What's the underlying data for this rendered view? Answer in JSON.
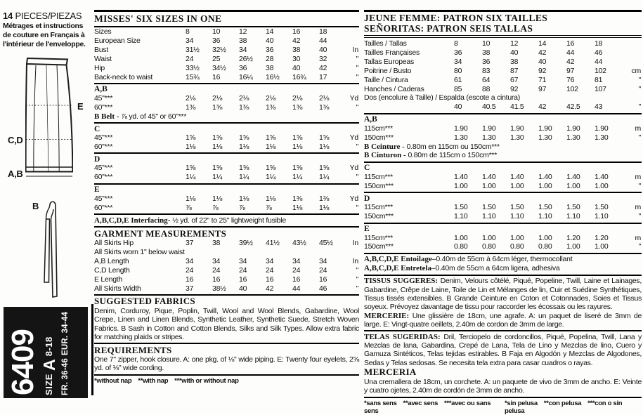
{
  "sidebar": {
    "pieces_num": "14",
    "pieces_label": " PIECES/PIEZAS",
    "french_note": "Métrages et instructions de couture en Français à l'intérieur de l'enveloppe.",
    "skirt_labels": {
      "e": "E",
      "cd": "C,D",
      "ab": "A,B",
      "b": "B"
    },
    "box": {
      "number": "6409",
      "size_word": "SIZE ",
      "size_letter": "A",
      "size_range": " 8-18",
      "fr_range": "FR. 36-46",
      "eur_range": "EUR. 34-44"
    }
  },
  "english": {
    "title": "MISSES' SIX SIZES IN ONE",
    "rows": [
      {
        "t": "row",
        "label": "Sizes",
        "v": [
          "8",
          "10",
          "12",
          "14",
          "16",
          "18"
        ],
        "u": ""
      },
      {
        "t": "row",
        "label": "European Size",
        "v": [
          "34",
          "36",
          "38",
          "40",
          "42",
          "44"
        ],
        "u": ""
      },
      {
        "t": "row",
        "label": "Bust",
        "v": [
          "31½",
          "32½",
          "34",
          "36",
          "38",
          "40"
        ],
        "u": "In"
      },
      {
        "t": "row",
        "label": "Waist",
        "v": [
          "24",
          "25",
          "26½",
          "28",
          "30",
          "32"
        ],
        "u": "\""
      },
      {
        "t": "row",
        "label": "Hip",
        "v": [
          "33½",
          "34½",
          "36",
          "38",
          "40",
          "42"
        ],
        "u": "\""
      },
      {
        "t": "row",
        "label": "Back-neck to waist",
        "v": [
          "15¾",
          "16",
          "16¼",
          "16½",
          "16¾",
          "17"
        ],
        "u": "\""
      },
      {
        "t": "hr"
      },
      {
        "t": "section",
        "label": "A,B"
      },
      {
        "t": "row",
        "label": "45\"***",
        "v": [
          "2⅛",
          "2⅛",
          "2⅛",
          "2⅛",
          "2⅛",
          "2⅛"
        ],
        "u": "Yd"
      },
      {
        "t": "row",
        "label": "60\"***",
        "v": [
          "1⅜",
          "1⅜",
          "1⅜",
          "1⅜",
          "1⅜",
          "1⅜"
        ],
        "u": "\""
      },
      {
        "t": "note",
        "b": "B Belt - ",
        "x": "⅞ yd. of 45\" or 60\"***"
      },
      {
        "t": "hr"
      },
      {
        "t": "section",
        "label": "C"
      },
      {
        "t": "row",
        "label": "45\"***",
        "v": [
          "1⅝",
          "1⅝",
          "1⅝",
          "1⅝",
          "1⅝",
          "1⅝"
        ],
        "u": "Yd"
      },
      {
        "t": "row",
        "label": "60\"***",
        "v": [
          "1⅛",
          "1⅛",
          "1⅛",
          "1⅛",
          "1⅛",
          "1⅛"
        ],
        "u": "\""
      },
      {
        "t": "hr"
      },
      {
        "t": "section",
        "label": "D"
      },
      {
        "t": "row",
        "label": "45\"***",
        "v": [
          "1⅝",
          "1⅝",
          "1⅝",
          "1⅝",
          "1⅝",
          "1⅝"
        ],
        "u": "Yd"
      },
      {
        "t": "row",
        "label": "60\"***",
        "v": [
          "1¼",
          "1¼",
          "1¼",
          "1¼",
          "1¼",
          "1¼"
        ],
        "u": "\""
      },
      {
        "t": "hr"
      },
      {
        "t": "section",
        "label": "E"
      },
      {
        "t": "row",
        "label": "45\"***",
        "v": [
          "1⅛",
          "1⅛",
          "1⅛",
          "1⅛",
          "1⅜",
          "1⅜"
        ],
        "u": "Yd"
      },
      {
        "t": "row",
        "label": "60\"***",
        "v": [
          "⅞",
          "⅞",
          "⅞",
          "⅞",
          "1⅛",
          "1⅛"
        ],
        "u": "\""
      },
      {
        "t": "hr"
      },
      {
        "t": "note",
        "b": "A,B,C,D,E Interfacing- ",
        "x": "½ yd. of 22\" to 25\" lightweight fusible"
      },
      {
        "t": "hr"
      },
      {
        "t": "head",
        "label": "GARMENT MEASUREMENTS"
      },
      {
        "t": "row",
        "label": "All Skirts Hip",
        "v": [
          "37",
          "38",
          "39½",
          "41½",
          "43½",
          "45½"
        ],
        "u": "In"
      },
      {
        "t": "full",
        "x": "All Skirts worn 1\" below waist"
      },
      {
        "t": "row",
        "label": "A,B Length",
        "v": [
          "34",
          "34",
          "34",
          "34",
          "34",
          "34"
        ],
        "u": "In"
      },
      {
        "t": "row",
        "label": "C,D Length",
        "v": [
          "24",
          "24",
          "24",
          "24",
          "24",
          "24"
        ],
        "u": "\""
      },
      {
        "t": "row",
        "label": "E Length",
        "v": [
          "16",
          "16",
          "16",
          "16",
          "16",
          "16"
        ],
        "u": "\""
      },
      {
        "t": "row",
        "label": "All Skirts Width",
        "v": [
          "37",
          "38½",
          "40",
          "42",
          "44",
          "46"
        ],
        "u": "\""
      },
      {
        "t": "hr"
      },
      {
        "t": "head",
        "label": "SUGGESTED FABRICS"
      },
      {
        "t": "para",
        "x": "Denim, Corduroy, Pique, Poplin, Twill, Wool and Wool Blends, Gabardine, Wool Crepe, Linen and Linen Blends, Synthetic Leather, Synthetic Suede, Stretch Woven Fabrics. B Sash in Cotton and Cotton Blends, Silks and Silk Types. Allow extra fabric for matching plaids or stripes."
      },
      {
        "t": "hr"
      },
      {
        "t": "head",
        "label": "REQUIREMENTS"
      },
      {
        "t": "para",
        "x": "One 7\" zipper, hook closure. A: one pkg. of ⅛\" wide piping. E: Twenty four eyelets, 2⅝ yd. of ⅛\" wide cording."
      }
    ],
    "footnotes": [
      "*without nap",
      "**with nap",
      "***with or without nap"
    ]
  },
  "foreign": {
    "title_fr": "JEUNE FEMME: PATRON SIX TAILLES",
    "title_es": "SEÑORITAS: PATRON SEIS TALLAS",
    "rows": [
      {
        "t": "row",
        "label": "Tailles / Tallas",
        "v": [
          "8",
          "10",
          "12",
          "14",
          "16",
          "18"
        ],
        "u": ""
      },
      {
        "t": "row",
        "label": "Tailles Françaises",
        "v": [
          "36",
          "38",
          "40",
          "42",
          "44",
          "46"
        ],
        "u": ""
      },
      {
        "t": "row",
        "label": "Tallas Europeas",
        "v": [
          "34",
          "36",
          "38",
          "40",
          "42",
          "44"
        ],
        "u": ""
      },
      {
        "t": "row",
        "label": "Poitrine / Busto",
        "v": [
          "80",
          "83",
          "87",
          "92",
          "97",
          "102"
        ],
        "u": "cm"
      },
      {
        "t": "row",
        "label": "Taille / Cintura",
        "v": [
          "61",
          "64",
          "67",
          "71",
          "76",
          "81"
        ],
        "u": "\""
      },
      {
        "t": "row",
        "label": "Hanches / Caderas",
        "v": [
          "85",
          "88",
          "92",
          "97",
          "102",
          "107"
        ],
        "u": "\""
      },
      {
        "t": "full",
        "x": "Dos (encolure à Taille) / Espalda (escote a cintura)"
      },
      {
        "t": "row",
        "label": "",
        "v": [
          "40",
          "40.5",
          "41.5",
          "42",
          "42.5",
          "43"
        ],
        "u": "\""
      },
      {
        "t": "hr"
      },
      {
        "t": "section",
        "label": "A,B"
      },
      {
        "t": "row",
        "label": "115cm***",
        "v": [
          "1.90",
          "1.90",
          "1.90",
          "1.90",
          "1.90",
          "1.90"
        ],
        "u": "m"
      },
      {
        "t": "row",
        "label": "150cm***",
        "v": [
          "1.30",
          "1.30",
          "1.30",
          "1.30",
          "1.30",
          "1.30"
        ],
        "u": "\""
      },
      {
        "t": "note",
        "b": "B Ceinture - ",
        "x": "0.80m en 115cm ou 150cm***"
      },
      {
        "t": "note",
        "b": "B Cinturon - ",
        "x": "0.80m de 115cm o 150cm***"
      },
      {
        "t": "hr"
      },
      {
        "t": "section",
        "label": "C"
      },
      {
        "t": "row",
        "label": "115cm***",
        "v": [
          "1.40",
          "1.40",
          "1.40",
          "1.40",
          "1.40",
          "1.40"
        ],
        "u": "m"
      },
      {
        "t": "row",
        "label": "150cm***",
        "v": [
          "1.00",
          "1.00",
          "1.00",
          "1.00",
          "1.00",
          "1.00"
        ],
        "u": "\""
      },
      {
        "t": "hr"
      },
      {
        "t": "section",
        "label": "D"
      },
      {
        "t": "row",
        "label": "115cm***",
        "v": [
          "1.50",
          "1.50",
          "1.50",
          "1.50",
          "1.50",
          "1.50"
        ],
        "u": "m"
      },
      {
        "t": "row",
        "label": "150cm***",
        "v": [
          "1.10",
          "1.10",
          "1.10",
          "1.10",
          "1.10",
          "1.10"
        ],
        "u": "\""
      },
      {
        "t": "hr"
      },
      {
        "t": "section",
        "label": "E"
      },
      {
        "t": "row",
        "label": "115cm***",
        "v": [
          "1.00",
          "1.00",
          "1.00",
          "1.00",
          "1.20",
          "1.20"
        ],
        "u": "m"
      },
      {
        "t": "row",
        "label": "150cm***",
        "v": [
          "0.80",
          "0.80",
          "0.80",
          "0.80",
          "1.00",
          "1.00"
        ],
        "u": "\""
      },
      {
        "t": "hr"
      },
      {
        "t": "note",
        "b": "A,B,C,D,E Entoilage–",
        "x": "0.40m de 55cm à 64cm léger, thermocollant"
      },
      {
        "t": "note",
        "b": "A,B,C,D,E Entretela–",
        "x": "0.40m de 55cm a 64cm ligera, adhesiva"
      },
      {
        "t": "hr"
      },
      {
        "t": "runin",
        "b": "TISSUS SUGGERES: ",
        "x": "Denim, Velours côtélé, Piqué, Popeline, Twill, Laine et Lainages, Gabardine, Crêpe de Laine, Toile de Lin et Mélanges de lin, Cuir et Suédine Synthétiques, Tissus tissés extensibles. B Grande Ceinture en Coton et Cotonnades, Soies et Tissus soyeux. Prévoyez davantage de tissu pour raccorder les écossais ou les rayures."
      },
      {
        "t": "runin",
        "b": "MERCERIE: ",
        "x": "Une glissière de 18cm, une agrafe. A: un paquet de liseré de 3mm de large. E: Vingt-quatre oeillets, 2.40m de cordon de 3mm de large."
      },
      {
        "t": "hr"
      },
      {
        "t": "runin",
        "b": "TELAS SUGERIDAS: ",
        "x": "Dril, Terciopelo de cordoncillos, Piqué, Popelina, Twill, Lana y Mezclas de lana, Gabardina, Crepé de Lana, Tela de Lino y Mezclas de lino, Cuero y Gamuza Sintéticos, Telas tejidas estirables. B Faja en Algodón y Mezclas de Algodones, Sedas y Telas sedosas. Se necesita tela extra para casar cuadros o rayas."
      },
      {
        "t": "head",
        "label": "MERCERIA"
      },
      {
        "t": "para",
        "x": "Una cremallera de 18cm, un corchete. A: un paquete de vivo de 3mm de ancho. E: Veinte y cuatro ojetes, 2.40m de cordón de 3mm de ancho."
      }
    ],
    "footnotes_fr": [
      "*sans sens",
      "**avec sens",
      "***avec ou sans sens"
    ],
    "footnotes_es": [
      "*sin pelusa",
      "**con pelusa",
      "***con o sin pelusa"
    ]
  }
}
